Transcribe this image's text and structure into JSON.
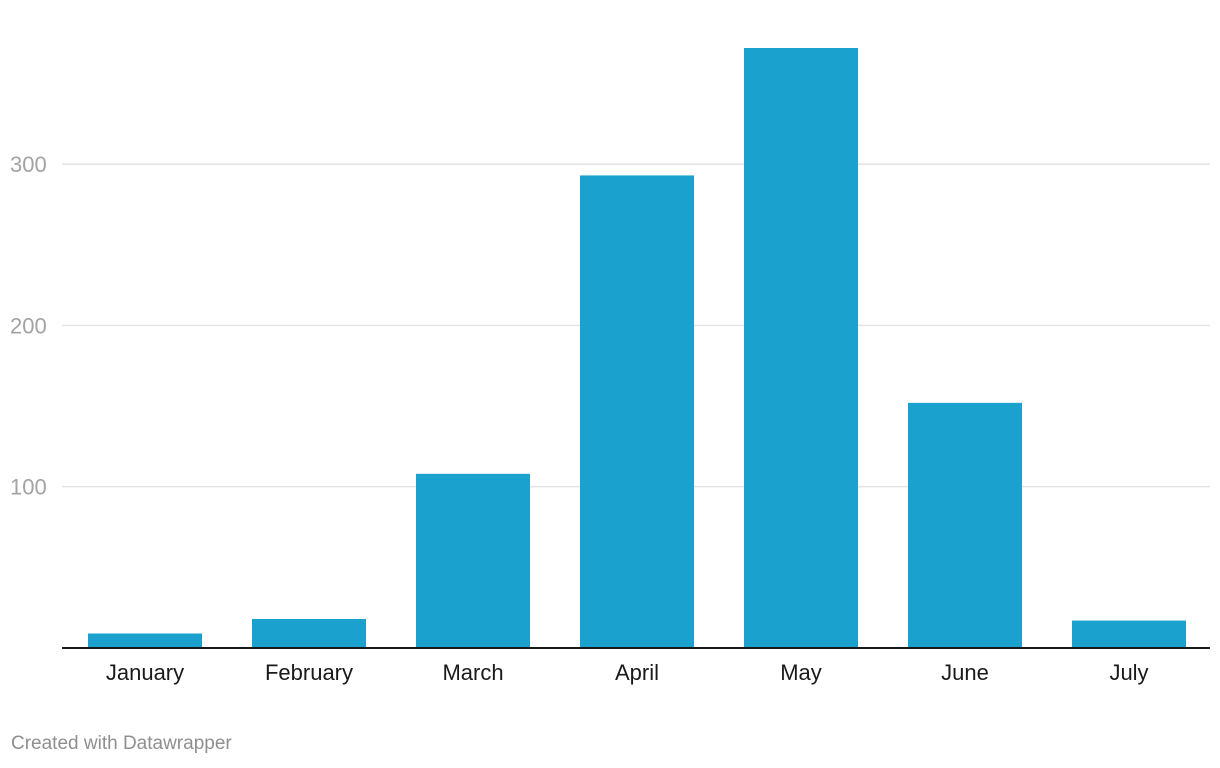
{
  "chart_data": {
    "type": "bar",
    "title": "",
    "xlabel": "",
    "ylabel": "",
    "categories": [
      "January",
      "February",
      "March",
      "April",
      "May",
      "June",
      "July"
    ],
    "values": [
      9,
      18,
      108,
      293,
      372,
      152,
      17
    ],
    "ylim": [
      0,
      372
    ],
    "yticks": [
      100,
      200,
      300
    ],
    "grid": true,
    "legend": "none",
    "bar_color": "#1aa1ce"
  },
  "footer": {
    "credit": "Created with Datawrapper"
  }
}
